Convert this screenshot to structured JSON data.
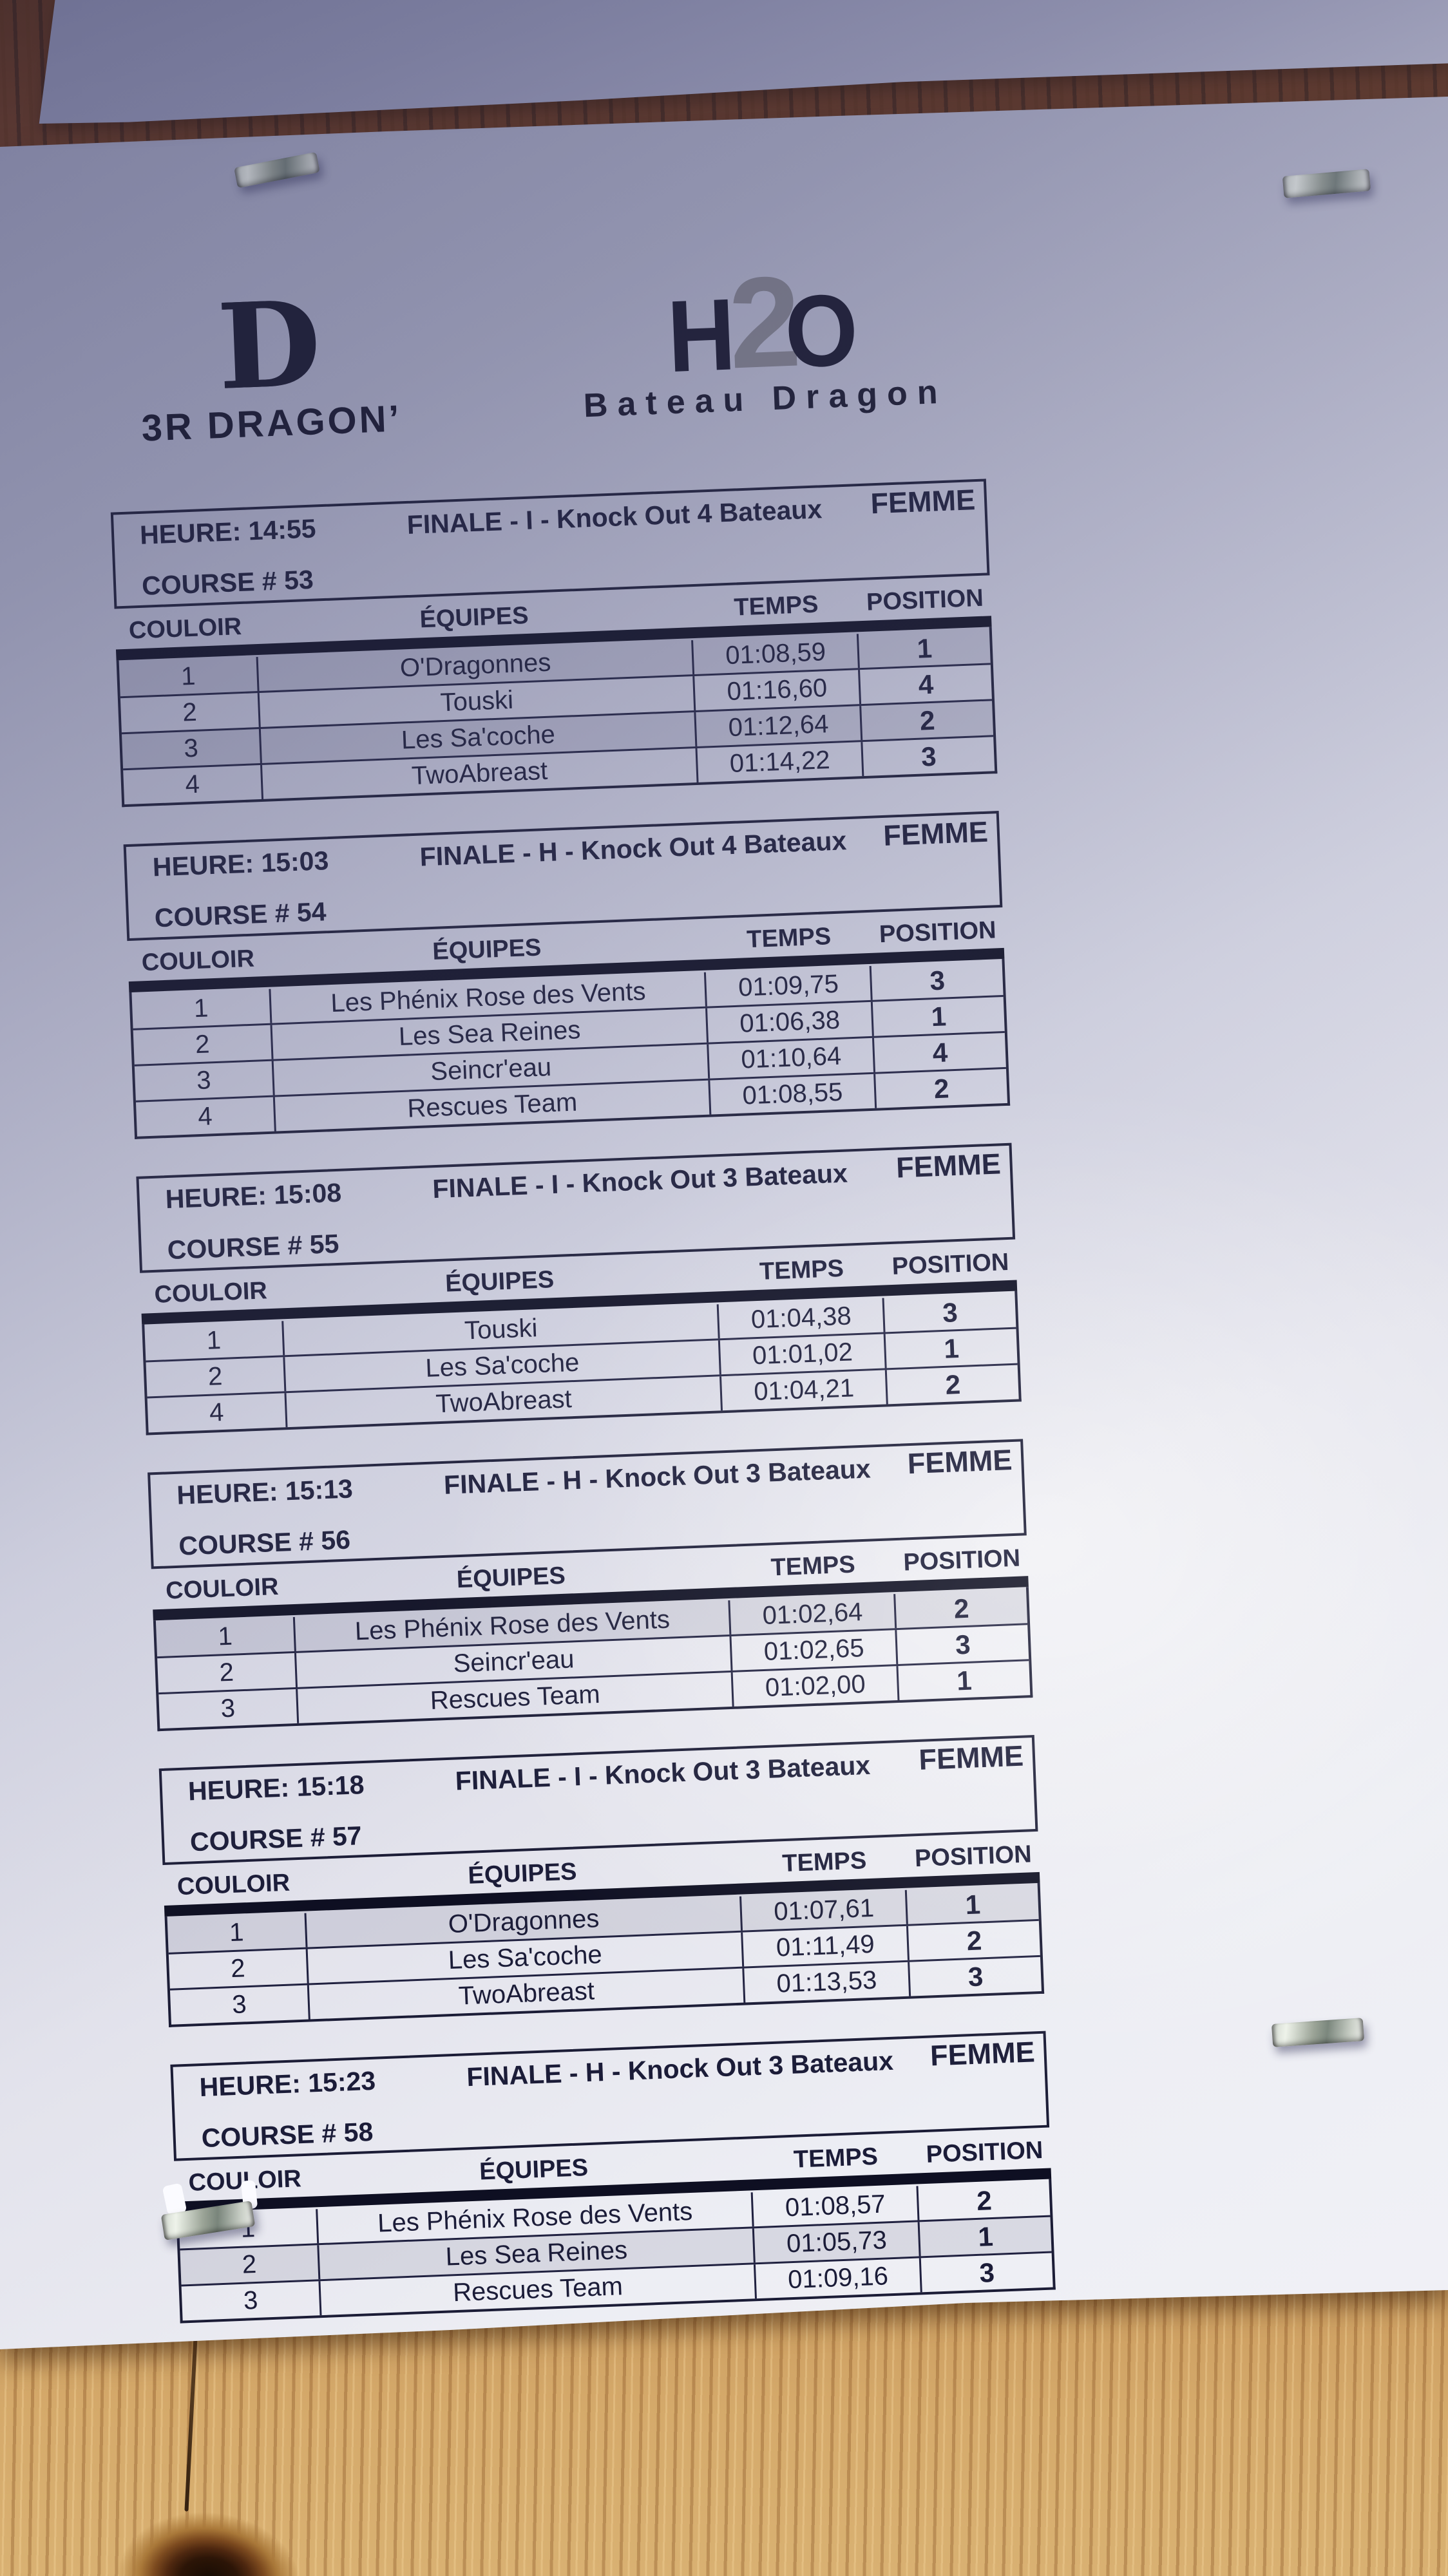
{
  "photo": {
    "description": "Printed dragon-boat race results sheet stapled to a plywood board, photographed with a shadow across the upper half",
    "staples": [
      "staple-top-left",
      "staple-top-right",
      "staple-middle-right",
      "staple-bottom-left"
    ]
  },
  "logos": {
    "left": {
      "glyph": "D",
      "wordmark": "3R DRAGON’"
    },
    "right": {
      "h": "H",
      "two": "2",
      "o": "O",
      "subtitle": "Bateau Dragon"
    }
  },
  "table": {
    "heure_label": "HEURE:",
    "course_label": "COURSE #",
    "columns": [
      "COULOIR",
      "ÉQUIPES",
      "TEMPS",
      "POSITION"
    ]
  },
  "races": [
    {
      "heure": "14:55",
      "title": "FINALE - I - Knock Out 4 Bateaux",
      "category": "FEMME",
      "course": "53",
      "rows": [
        {
          "couloir": "1",
          "equipe": "O'Dragonnes",
          "temps": "01:08,59",
          "position": "1",
          "shaded": true
        },
        {
          "couloir": "2",
          "equipe": "Touski",
          "temps": "01:16,60",
          "position": "4",
          "shaded": false
        },
        {
          "couloir": "3",
          "equipe": "Les Sa'coche",
          "temps": "01:12,64",
          "position": "2",
          "shaded": true
        },
        {
          "couloir": "4",
          "equipe": "TwoAbreast",
          "temps": "01:14,22",
          "position": "3",
          "shaded": false
        }
      ]
    },
    {
      "heure": "15:03",
      "title": "FINALE - H - Knock Out 4 Bateaux",
      "category": "FEMME",
      "course": "54",
      "rows": [
        {
          "couloir": "1",
          "equipe": "Les Phénix Rose des Vents",
          "temps": "01:09,75",
          "position": "3",
          "shaded": false
        },
        {
          "couloir": "2",
          "equipe": "Les Sea Reines",
          "temps": "01:06,38",
          "position": "1",
          "shaded": false
        },
        {
          "couloir": "3",
          "equipe": "Seincr'eau",
          "temps": "01:10,64",
          "position": "4",
          "shaded": false
        },
        {
          "couloir": "4",
          "equipe": "Rescues Team",
          "temps": "01:08,55",
          "position": "2",
          "shaded": false
        }
      ]
    },
    {
      "heure": "15:08",
      "title": "FINALE - I - Knock Out 3 Bateaux",
      "category": "FEMME",
      "course": "55",
      "rows": [
        {
          "couloir": "1",
          "equipe": "Touski",
          "temps": "01:04,38",
          "position": "3",
          "shaded": false
        },
        {
          "couloir": "2",
          "equipe": "Les Sa'coche",
          "temps": "01:01,02",
          "position": "1",
          "shaded": false
        },
        {
          "couloir": "4",
          "equipe": "TwoAbreast",
          "temps": "01:04,21",
          "position": "2",
          "shaded": false
        }
      ]
    },
    {
      "heure": "15:13",
      "title": "FINALE - H - Knock Out 3 Bateaux",
      "category": "FEMME",
      "course": "56",
      "rows": [
        {
          "couloir": "1",
          "equipe": "Les Phénix Rose des Vents",
          "temps": "01:02,64",
          "position": "2",
          "shaded": true
        },
        {
          "couloir": "2",
          "equipe": "Seincr'eau",
          "temps": "01:02,65",
          "position": "3",
          "shaded": false
        },
        {
          "couloir": "3",
          "equipe": "Rescues Team",
          "temps": "01:02,00",
          "position": "1",
          "shaded": false
        }
      ]
    },
    {
      "heure": "15:18",
      "title": "FINALE - I - Knock Out 3 Bateaux",
      "category": "FEMME",
      "course": "57",
      "rows": [
        {
          "couloir": "1",
          "equipe": "O'Dragonnes",
          "temps": "01:07,61",
          "position": "1",
          "shaded": true
        },
        {
          "couloir": "2",
          "equipe": "Les Sa'coche",
          "temps": "01:11,49",
          "position": "2",
          "shaded": false
        },
        {
          "couloir": "3",
          "equipe": "TwoAbreast",
          "temps": "01:13,53",
          "position": "3",
          "shaded": false
        }
      ]
    },
    {
      "heure": "15:23",
      "title": "FINALE - H - Knock Out 3 Bateaux",
      "category": "FEMME",
      "course": "58",
      "rows": [
        {
          "couloir": "1",
          "equipe": "Les Phénix Rose des Vents",
          "temps": "01:08,57",
          "position": "2",
          "shaded": false
        },
        {
          "couloir": "2",
          "equipe": "Les Sea Reines",
          "temps": "01:05,73",
          "position": "1",
          "shaded": true
        },
        {
          "couloir": "3",
          "equipe": "Rescues Team",
          "temps": "01:09,16",
          "position": "3",
          "shaded": false
        }
      ]
    }
  ]
}
